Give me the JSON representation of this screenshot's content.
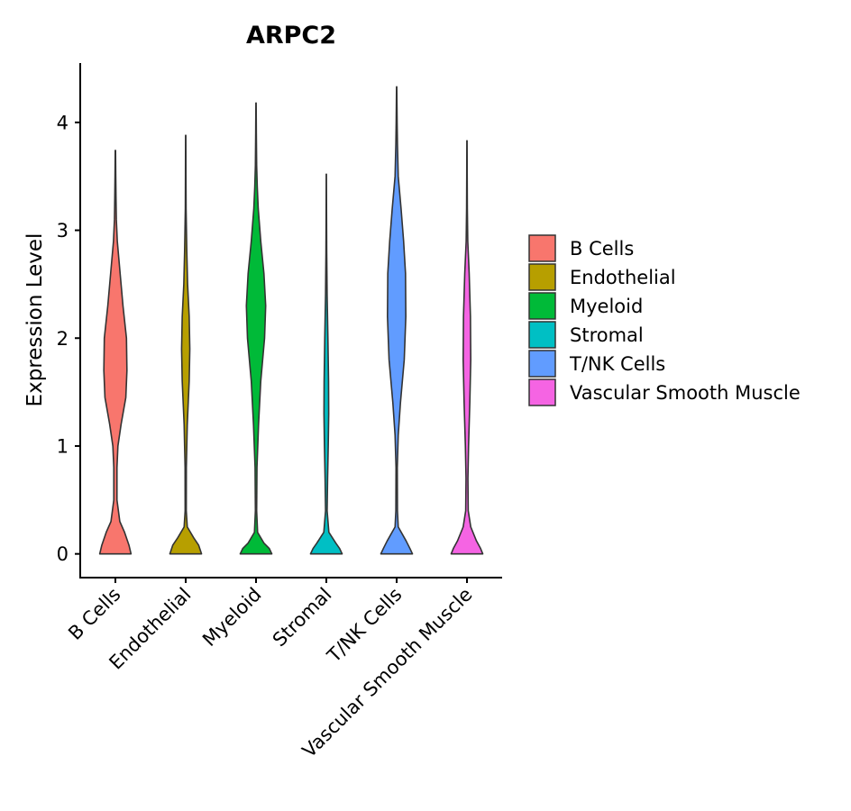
{
  "chart_data": {
    "type": "violin",
    "title": "ARPC2",
    "xlabel": "",
    "ylabel": "Expression Level",
    "ylim": [
      -0.22,
      4.55
    ],
    "yticks": [
      0,
      1,
      2,
      3,
      4
    ],
    "yticklabels": [
      "0",
      "1",
      "2",
      "3",
      "4"
    ],
    "categories": [
      "B Cells",
      "Endothelial",
      "Myeloid",
      "Stromal",
      "T/NK Cells",
      "Vascular Smooth Muscle"
    ],
    "colors": [
      "#F8766D",
      "#B79F00",
      "#00BA38",
      "#00BFC4",
      "#619CFF",
      "#F564E3"
    ],
    "legend_position": "right",
    "violins": [
      {
        "group": "B Cells",
        "profile": [
          [
            0,
            0.495
          ],
          [
            0.08,
            0.43
          ],
          [
            0.2,
            0.29
          ],
          [
            0.3,
            0.14
          ],
          [
            0.5,
            0.05
          ],
          [
            0.8,
            0.05
          ],
          [
            1.0,
            0.08
          ],
          [
            1.2,
            0.18
          ],
          [
            1.45,
            0.33
          ],
          [
            1.7,
            0.365
          ],
          [
            2.0,
            0.35
          ],
          [
            2.3,
            0.24
          ],
          [
            2.6,
            0.15
          ],
          [
            2.9,
            0.06
          ],
          [
            3.1,
            0.03
          ],
          [
            3.3,
            0.02
          ],
          [
            3.5,
            0.012
          ],
          [
            3.74,
            0.005
          ]
        ]
      },
      {
        "group": "Endothelial",
        "profile": [
          [
            0,
            0.5
          ],
          [
            0.08,
            0.41
          ],
          [
            0.15,
            0.25
          ],
          [
            0.25,
            0.05
          ],
          [
            0.4,
            0.018
          ],
          [
            0.8,
            0.02
          ],
          [
            1.2,
            0.05
          ],
          [
            1.6,
            0.11
          ],
          [
            1.9,
            0.13
          ],
          [
            2.2,
            0.11
          ],
          [
            2.5,
            0.06
          ],
          [
            2.8,
            0.035
          ],
          [
            3.2,
            0.012
          ],
          [
            3.5,
            0.008
          ],
          [
            3.88,
            0.004
          ]
        ]
      },
      {
        "group": "Myeloid",
        "profile": [
          [
            0,
            0.5
          ],
          [
            0.05,
            0.42
          ],
          [
            0.1,
            0.25
          ],
          [
            0.2,
            0.05
          ],
          [
            0.4,
            0.02
          ],
          [
            0.8,
            0.03
          ],
          [
            1.2,
            0.08
          ],
          [
            1.6,
            0.15
          ],
          [
            2.0,
            0.27
          ],
          [
            2.3,
            0.305
          ],
          [
            2.6,
            0.25
          ],
          [
            2.9,
            0.15
          ],
          [
            3.2,
            0.07
          ],
          [
            3.4,
            0.04
          ],
          [
            3.6,
            0.02
          ],
          [
            3.9,
            0.01
          ],
          [
            4.18,
            0.004
          ]
        ]
      },
      {
        "group": "Stromal",
        "profile": [
          [
            0,
            0.5
          ],
          [
            0.05,
            0.42
          ],
          [
            0.1,
            0.3
          ],
          [
            0.2,
            0.08
          ],
          [
            0.4,
            0.025
          ],
          [
            0.7,
            0.04
          ],
          [
            1.0,
            0.06
          ],
          [
            1.3,
            0.075
          ],
          [
            1.6,
            0.07
          ],
          [
            2.0,
            0.05
          ],
          [
            2.4,
            0.025
          ],
          [
            2.8,
            0.012
          ],
          [
            3.2,
            0.006
          ],
          [
            3.52,
            0.003
          ]
        ]
      },
      {
        "group": "T/NK Cells",
        "profile": [
          [
            0,
            0.5
          ],
          [
            0.05,
            0.42
          ],
          [
            0.12,
            0.3
          ],
          [
            0.25,
            0.05
          ],
          [
            0.4,
            0.025
          ],
          [
            0.8,
            0.02
          ],
          [
            1.1,
            0.05
          ],
          [
            1.4,
            0.12
          ],
          [
            1.8,
            0.24
          ],
          [
            2.2,
            0.29
          ],
          [
            2.6,
            0.28
          ],
          [
            2.9,
            0.22
          ],
          [
            3.2,
            0.14
          ],
          [
            3.5,
            0.05
          ],
          [
            3.8,
            0.025
          ],
          [
            4.0,
            0.015
          ],
          [
            4.33,
            0.004
          ]
        ]
      },
      {
        "group": "Vascular Smooth Muscle",
        "profile": [
          [
            0,
            0.5
          ],
          [
            0.05,
            0.43
          ],
          [
            0.12,
            0.3
          ],
          [
            0.25,
            0.12
          ],
          [
            0.4,
            0.04
          ],
          [
            0.7,
            0.03
          ],
          [
            1.0,
            0.05
          ],
          [
            1.4,
            0.09
          ],
          [
            1.8,
            0.12
          ],
          [
            2.2,
            0.11
          ],
          [
            2.6,
            0.07
          ],
          [
            2.9,
            0.025
          ],
          [
            3.2,
            0.012
          ],
          [
            3.5,
            0.007
          ],
          [
            3.83,
            0.004
          ]
        ]
      }
    ]
  }
}
